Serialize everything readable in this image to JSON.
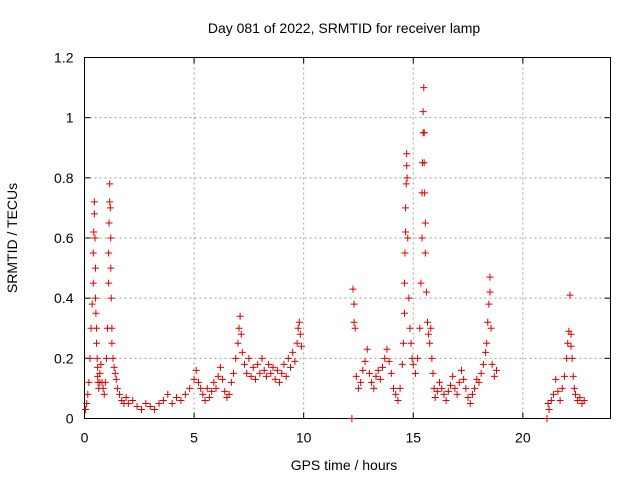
{
  "chart_data": {
    "type": "scatter",
    "title": "Day 081 of 2022, SRMTID for receiver lamp",
    "xlabel": "GPS time / hours",
    "ylabel": "SRMTID / TECUs",
    "xlim": [
      0,
      24
    ],
    "ylim": [
      0,
      1.2
    ],
    "xticks": [
      0,
      5,
      10,
      15,
      20
    ],
    "xtick_labels": [
      "0",
      "5",
      "10",
      "15",
      "20"
    ],
    "yticks": [
      0,
      0.2,
      0.4,
      0.6,
      0.8,
      1,
      1.2
    ],
    "ytick_labels": [
      "0",
      "0.2",
      "0.4",
      "0.6",
      "0.8",
      "1",
      "1.2"
    ],
    "grid": true,
    "marker": "+",
    "series": [
      {
        "name": "SRMTID",
        "color": "#e00000",
        "x": [
          0.05,
          0.1,
          0.15,
          0.2,
          0.25,
          0.3,
          0.35,
          0.4,
          0.4,
          0.42,
          0.45,
          0.45,
          0.48,
          0.5,
          0.5,
          0.52,
          0.55,
          0.55,
          0.58,
          0.6,
          0.6,
          0.62,
          0.65,
          0.7,
          0.7,
          0.75,
          0.8,
          0.85,
          0.9,
          0.95,
          1.0,
          1.05,
          1.1,
          1.1,
          1.12,
          1.15,
          1.15,
          1.18,
          1.2,
          1.2,
          1.22,
          1.25,
          1.25,
          1.3,
          1.35,
          1.4,
          1.45,
          1.5,
          1.6,
          1.7,
          1.8,
          1.9,
          2.0,
          2.2,
          2.4,
          2.6,
          2.8,
          3.0,
          3.2,
          3.4,
          3.6,
          3.8,
          4.0,
          4.2,
          4.4,
          4.6,
          4.8,
          5.0,
          5.1,
          5.2,
          5.3,
          5.4,
          5.5,
          5.6,
          5.7,
          5.8,
          5.9,
          6.0,
          6.1,
          6.2,
          6.3,
          6.4,
          6.5,
          6.6,
          6.7,
          6.8,
          6.9,
          7.0,
          7.05,
          7.1,
          7.15,
          7.2,
          7.3,
          7.4,
          7.5,
          7.6,
          7.7,
          7.8,
          7.9,
          8.0,
          8.1,
          8.2,
          8.3,
          8.4,
          8.5,
          8.6,
          8.7,
          8.8,
          8.9,
          9.0,
          9.1,
          9.2,
          9.3,
          9.4,
          9.5,
          9.6,
          9.7,
          9.75,
          9.8,
          9.85,
          9.9,
          12.2,
          12.25,
          12.3,
          12.3,
          12.35,
          12.4,
          12.5,
          12.6,
          12.7,
          12.8,
          12.9,
          13.0,
          13.1,
          13.2,
          13.3,
          13.4,
          13.5,
          13.6,
          13.7,
          13.8,
          13.9,
          14.0,
          14.1,
          14.2,
          14.3,
          14.4,
          14.5,
          14.55,
          14.6,
          14.6,
          14.62,
          14.65,
          14.65,
          14.68,
          14.7,
          14.7,
          14.72,
          14.75,
          14.8,
          14.85,
          14.9,
          14.95,
          15.0,
          15.1,
          15.2,
          15.3,
          15.35,
          15.4,
          15.4,
          15.42,
          15.45,
          15.45,
          15.48,
          15.5,
          15.5,
          15.52,
          15.55,
          15.55,
          15.6,
          15.65,
          15.7,
          15.75,
          15.8,
          15.85,
          15.9,
          15.95,
          16.0,
          16.1,
          16.2,
          16.3,
          16.4,
          16.5,
          16.6,
          16.7,
          16.8,
          16.9,
          17.0,
          17.1,
          17.2,
          17.3,
          17.4,
          17.5,
          17.6,
          17.7,
          17.8,
          17.9,
          18.0,
          18.1,
          18.2,
          18.3,
          18.35,
          18.4,
          18.45,
          18.5,
          18.5,
          18.55,
          18.6,
          18.7,
          18.8,
          21.1,
          21.15,
          21.2,
          21.3,
          21.4,
          21.5,
          21.6,
          21.7,
          21.8,
          21.9,
          22.0,
          22.05,
          22.1,
          22.15,
          22.2,
          22.2,
          22.25,
          22.3,
          22.35,
          22.4,
          22.5,
          22.6,
          22.7,
          22.8
        ],
        "y": [
          0.03,
          0.05,
          0.08,
          0.12,
          0.2,
          0.3,
          0.38,
          0.45,
          0.55,
          0.62,
          0.68,
          0.72,
          0.6,
          0.5,
          0.4,
          0.35,
          0.3,
          0.25,
          0.2,
          0.17,
          0.14,
          0.12,
          0.1,
          0.12,
          0.15,
          0.18,
          0.12,
          0.1,
          0.08,
          0.12,
          0.2,
          0.3,
          0.45,
          0.55,
          0.65,
          0.72,
          0.78,
          0.7,
          0.6,
          0.5,
          0.4,
          0.3,
          0.25,
          0.2,
          0.17,
          0.15,
          0.13,
          0.1,
          0.08,
          0.06,
          0.05,
          0.07,
          0.05,
          0.06,
          0.04,
          0.03,
          0.05,
          0.04,
          0.03,
          0.05,
          0.06,
          0.08,
          0.05,
          0.07,
          0.06,
          0.08,
          0.1,
          0.13,
          0.16,
          0.12,
          0.1,
          0.08,
          0.06,
          0.1,
          0.07,
          0.09,
          0.12,
          0.1,
          0.14,
          0.17,
          0.13,
          0.09,
          0.07,
          0.08,
          0.12,
          0.15,
          0.2,
          0.25,
          0.3,
          0.34,
          0.28,
          0.22,
          0.18,
          0.15,
          0.2,
          0.14,
          0.17,
          0.13,
          0.18,
          0.15,
          0.2,
          0.16,
          0.14,
          0.18,
          0.15,
          0.17,
          0.13,
          0.16,
          0.12,
          0.15,
          0.18,
          0.14,
          0.2,
          0.17,
          0.22,
          0.19,
          0.25,
          0.3,
          0.32,
          0.28,
          0.24,
          0.0,
          0.43,
          0.38,
          0.32,
          0.3,
          0.14,
          0.1,
          0.12,
          0.16,
          0.19,
          0.23,
          0.15,
          0.12,
          0.1,
          0.14,
          0.16,
          0.13,
          0.17,
          0.2,
          0.23,
          0.19,
          0.15,
          0.1,
          0.08,
          0.06,
          0.1,
          0.18,
          0.25,
          0.35,
          0.45,
          0.55,
          0.62,
          0.7,
          0.78,
          0.84,
          0.88,
          0.8,
          0.6,
          0.4,
          0.3,
          0.25,
          0.2,
          0.18,
          0.15,
          0.2,
          0.3,
          0.45,
          0.6,
          0.75,
          0.85,
          0.95,
          1.02,
          1.1,
          0.95,
          0.85,
          0.75,
          0.65,
          0.55,
          0.42,
          0.32,
          0.28,
          0.25,
          0.3,
          0.2,
          0.15,
          0.1,
          0.07,
          0.09,
          0.12,
          0.1,
          0.08,
          0.06,
          0.09,
          0.11,
          0.14,
          0.1,
          0.08,
          0.12,
          0.16,
          0.13,
          0.1,
          0.07,
          0.05,
          0.08,
          0.1,
          0.13,
          0.12,
          0.15,
          0.18,
          0.22,
          0.25,
          0.32,
          0.38,
          0.47,
          0.42,
          0.3,
          0.18,
          0.14,
          0.16,
          0.0,
          0.05,
          0.03,
          0.06,
          0.08,
          0.13,
          0.09,
          0.06,
          0.1,
          0.14,
          0.2,
          0.25,
          0.29,
          0.41,
          0.28,
          0.24,
          0.2,
          0.14,
          0.1,
          0.08,
          0.06,
          0.07,
          0.05,
          0.06
        ]
      }
    ]
  }
}
